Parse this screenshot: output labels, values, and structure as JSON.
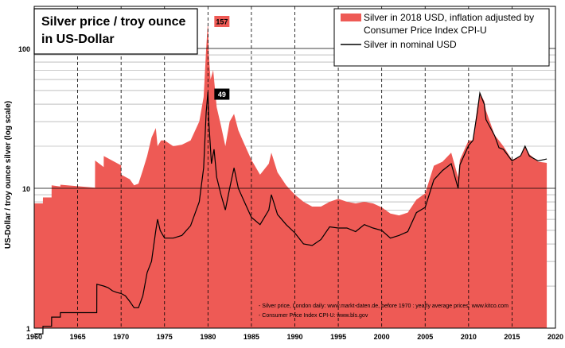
{
  "chart_data": {
    "type": "area",
    "title": "Silver price / troy ounce\nin US-Dollar",
    "xlabel": "",
    "ylabel": "US-Dollar / troy ounce silver (log scale)",
    "y_scale": "log",
    "xlim": [
      1960,
      2020
    ],
    "ylim": [
      1,
      200
    ],
    "x_ticks": [
      1960,
      1965,
      1970,
      1975,
      1980,
      1985,
      1990,
      1995,
      2000,
      2005,
      2010,
      2015,
      2020
    ],
    "y_ticks": [
      1,
      10,
      100
    ],
    "grid": true,
    "legend_position": "top-right",
    "colors": {
      "real": "#ee5a55",
      "nominal": "#000000",
      "grid_major": "#000000",
      "grid_minor": "#999999"
    },
    "series": [
      {
        "name": "Silver in 2018 USD, inflation adjusted by Consumer Price Index CPI-U",
        "kind": "area",
        "x": [
          1960,
          1961,
          1961.01,
          1962,
          1962.01,
          1963,
          1963.01,
          1967,
          1967.01,
          1968,
          1968.01,
          1970,
          1970.01,
          1971,
          1971.5,
          1972,
          1972.5,
          1973,
          1973.5,
          1974,
          1974.2,
          1974.6,
          1975,
          1976,
          1977,
          1978,
          1979,
          1979.5,
          1979.8,
          1980.0,
          1980.1,
          1980.3,
          1980.6,
          1981,
          1981.5,
          1982,
          1982.5,
          1983,
          1983.5,
          1984,
          1985,
          1986,
          1987,
          1987.3,
          1988,
          1989,
          1990,
          1991,
          1992,
          1993,
          1994,
          1995,
          1996,
          1997,
          1998,
          1999,
          2000,
          2001,
          2002,
          2003,
          2004,
          2005,
          2006,
          2007,
          2008,
          2008.8,
          2009,
          2010,
          2010.5,
          2011,
          2011.3,
          2011.8,
          2012,
          2013,
          2013.5,
          2014,
          2015,
          2016,
          2016.5,
          2017,
          2018,
          2019
        ],
        "values": [
          7.8,
          7.8,
          8.6,
          8.6,
          10.5,
          10.3,
          10.6,
          10.1,
          15.8,
          14.2,
          17.0,
          14.6,
          12.5,
          11.6,
          10.5,
          10.8,
          13.5,
          17.0,
          23.0,
          27.0,
          20.0,
          22.0,
          22.0,
          20.0,
          20.5,
          22.0,
          30.0,
          45.0,
          100.0,
          157.0,
          90.0,
          60.0,
          70.0,
          38.0,
          28.0,
          20.0,
          30.0,
          34.0,
          26.0,
          22.0,
          16.0,
          12.5,
          15.0,
          18.0,
          13.0,
          10.5,
          9.0,
          8.0,
          7.4,
          7.4,
          8.0,
          8.4,
          8.0,
          7.8,
          8.0,
          7.8,
          7.3,
          6.6,
          6.4,
          6.7,
          8.3,
          9.2,
          14.5,
          15.5,
          18.0,
          12.0,
          16.0,
          22.0,
          22.0,
          38.0,
          48.0,
          42.0,
          36.0,
          24.0,
          22.0,
          20.0,
          16.0,
          17.0,
          20.0,
          17.5,
          15.5,
          15.2
        ]
      },
      {
        "name": "Silver in nominal USD",
        "kind": "line",
        "x": [
          1960,
          1961,
          1961.01,
          1962,
          1962.01,
          1963,
          1963.01,
          1967.2,
          1967.21,
          1968,
          1968.5,
          1969,
          1969.5,
          1970,
          1970.5,
          1971,
          1971.5,
          1972,
          1972.5,
          1973,
          1973.5,
          1974,
          1974.2,
          1974.5,
          1975,
          1976,
          1977,
          1978,
          1979,
          1979.5,
          1979.8,
          1980.0,
          1980.1,
          1980.4,
          1980.7,
          1981,
          1981.5,
          1982,
          1982.5,
          1983,
          1983.5,
          1984,
          1985,
          1986,
          1987,
          1987.3,
          1988,
          1989,
          1990,
          1991,
          1992,
          1993,
          1994,
          1995,
          1996,
          1997,
          1998,
          1999,
          2000,
          2001,
          2002,
          2003,
          2004,
          2005,
          2006,
          2007,
          2008,
          2008.8,
          2009,
          2010,
          2010.5,
          2011,
          2011.3,
          2011.8,
          2012,
          2013,
          2013.5,
          2014,
          2015,
          2016,
          2016.5,
          2017,
          2018,
          2019
        ],
        "values": [
          0.91,
          0.91,
          1.03,
          1.03,
          1.2,
          1.2,
          1.29,
          1.29,
          2.06,
          2.0,
          1.95,
          1.85,
          1.8,
          1.77,
          1.7,
          1.55,
          1.4,
          1.4,
          1.7,
          2.5,
          3.0,
          5.0,
          6.0,
          5.0,
          4.4,
          4.4,
          4.6,
          5.4,
          8.0,
          14.0,
          35.0,
          49.0,
          30.0,
          15.0,
          19.0,
          12.0,
          9.0,
          7.0,
          10.0,
          14.0,
          10.0,
          8.5,
          6.2,
          5.5,
          7.0,
          9.0,
          6.5,
          5.5,
          4.8,
          4.0,
          3.9,
          4.3,
          5.3,
          5.2,
          5.2,
          4.9,
          5.5,
          5.2,
          5.0,
          4.4,
          4.6,
          4.9,
          6.7,
          7.3,
          11.5,
          13.4,
          15.0,
          10.0,
          14.7,
          20.2,
          22.0,
          35.0,
          48.0,
          40.0,
          31.0,
          23.8,
          19.5,
          19.0,
          15.7,
          17.1,
          20.0,
          17.0,
          15.7,
          16.2
        ]
      }
    ],
    "annotations": [
      {
        "text": "157",
        "x": 1980.0,
        "y": 157,
        "style": "red-box"
      },
      {
        "text": "49",
        "x": 1980.0,
        "y": 49,
        "style": "black-box"
      }
    ],
    "source_notes": [
      "- Silver price, London daily: www.markt-daten.de,  before 1970 :  yearly  average prices: www.kitco.com",
      "- Consumer Price Index CPI-U: www.bls.gov"
    ]
  }
}
